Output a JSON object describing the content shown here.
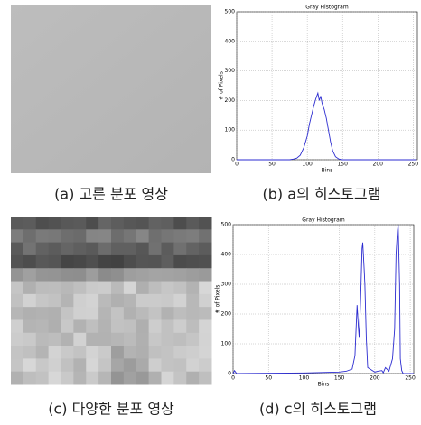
{
  "figures": [
    {
      "caption": "(a) 고른 분포 영상"
    },
    {
      "caption": "(c) 다양한 분포 영상"
    }
  ],
  "chart_data": [
    {
      "type": "line",
      "title": "Gray Histogram",
      "x_label": "Bins",
      "y_label": "# of Pixels",
      "caption": "(b) a의 히스토그램",
      "xlim": [
        0,
        256
      ],
      "ylim": [
        0,
        500
      ],
      "xticks": [
        0,
        50,
        100,
        150,
        200,
        250
      ],
      "yticks": [
        0,
        100,
        200,
        300,
        400,
        500
      ],
      "grid": true,
      "x": [
        0,
        75,
        80,
        85,
        90,
        95,
        100,
        103,
        106,
        109,
        112,
        115,
        117,
        119,
        121,
        124,
        127,
        130,
        133,
        136,
        140,
        145,
        150,
        255
      ],
      "series": [
        {
          "color": "#2b2bd0",
          "values": [
            0,
            0,
            2,
            5,
            15,
            40,
            80,
            120,
            150,
            180,
            205,
            225,
            200,
            215,
            190,
            170,
            140,
            100,
            60,
            30,
            10,
            2,
            0,
            0
          ]
        }
      ]
    },
    {
      "type": "line",
      "title": "Gray Histogram",
      "x_label": "Bins",
      "y_label": "# of Pixels",
      "caption": "(d) c의 히스토그램",
      "xlim": [
        0,
        255
      ],
      "ylim": [
        0,
        500
      ],
      "xticks": [
        0,
        50,
        100,
        150,
        200,
        250
      ],
      "yticks": [
        0,
        100,
        200,
        300,
        400,
        500
      ],
      "grid": true,
      "x": [
        0,
        2,
        5,
        100,
        150,
        160,
        168,
        172,
        175,
        177,
        178,
        180,
        182,
        183,
        185,
        186,
        188,
        190,
        200,
        205,
        210,
        212,
        215,
        220,
        225,
        228,
        230,
        232,
        233,
        235,
        236,
        238,
        240,
        255
      ],
      "series": [
        {
          "color": "#2b2bd0",
          "values": [
            0,
            10,
            0,
            2,
            5,
            8,
            15,
            60,
            230,
            150,
            120,
            250,
            420,
            440,
            350,
            300,
            120,
            20,
            5,
            8,
            10,
            3,
            20,
            8,
            50,
            150,
            400,
            480,
            500,
            300,
            50,
            10,
            0,
            0
          ]
        }
      ]
    }
  ]
}
